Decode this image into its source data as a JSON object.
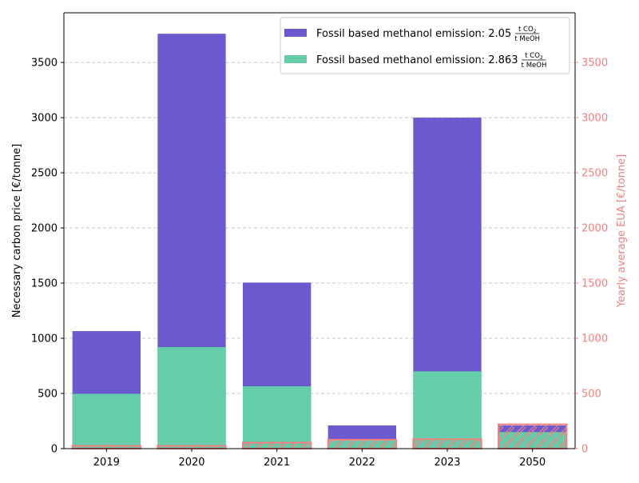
{
  "chart_data": {
    "type": "bar",
    "categories": [
      "2019",
      "2020",
      "2021",
      "2022",
      "2023",
      "2050"
    ],
    "series": [
      {
        "name": "Fossil based methanol emission: 2.05",
        "unit_numerator": "t CO",
        "unit_subscript": "2",
        "unit_denominator": "t MeOH",
        "values": [
          1065,
          3760,
          1505,
          210,
          3000,
          210
        ],
        "color": "#6a5acd"
      },
      {
        "name": "Fossil based methanol emission: 2.863",
        "unit_numerator": "t CO",
        "unit_subscript": "2",
        "unit_denominator": "t MeOH",
        "values": [
          497,
          920,
          565,
          75,
          700,
          150
        ],
        "color": "#66cdaa"
      }
    ],
    "eua_overlay": {
      "values": [
        25,
        25,
        54,
        81,
        85,
        220
      ],
      "edge_color": "#f08080",
      "pattern": "hatched"
    },
    "ylabel": "Necessary carbon price [€/tonne]",
    "ylabel_right": "Yearly average EUA [€/tonne]",
    "ylim": [
      0,
      3950
    ],
    "yticks": [
      "0",
      "500",
      "1000",
      "1500",
      "2000",
      "2500",
      "3000",
      "3500"
    ],
    "right_axis_color": "#f08080",
    "grid": "horizontal dashed",
    "legend_position": "top-right"
  }
}
